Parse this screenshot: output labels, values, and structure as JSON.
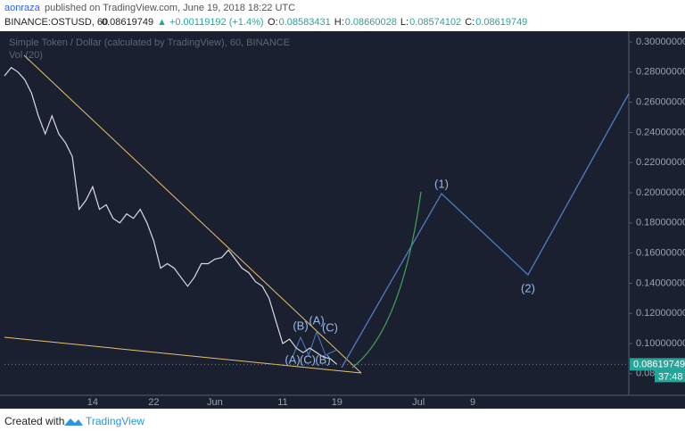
{
  "header": {
    "author": "aonraza",
    "published": "published on TradingView.com, June 19, 2018 18:22 UTC",
    "symbol": "BINANCE:OSTUSD, 60",
    "price": "0.08619749",
    "change": "▲ +0.00119192 (+1.4%)",
    "ohlc": [
      {
        "label": "O:",
        "value": "0.08583431"
      },
      {
        "label": "H:",
        "value": "0.08660028"
      },
      {
        "label": "L:",
        "value": "0.08574102"
      },
      {
        "label": "C:",
        "value": "0.08619749"
      }
    ]
  },
  "chart_data": {
    "type": "line",
    "title": "Simple Token / Dollar (calculated by TradingView), 60, BINANCE",
    "subtitle": "Vol (20)",
    "categories": [
      null,
      null,
      null,
      null,
      null,
      null,
      null,
      null,
      null,
      null,
      null,
      null,
      null,
      "14",
      null,
      null,
      null,
      null,
      null,
      null,
      null,
      null,
      "22",
      null,
      null,
      null,
      null,
      null,
      null,
      null,
      null,
      "Jun",
      null,
      null,
      null,
      null,
      null,
      null,
      null,
      null,
      null,
      "11",
      null,
      null,
      null,
      null,
      null,
      null,
      null,
      "19",
      null,
      null,
      null,
      null,
      null,
      null,
      null,
      null,
      null,
      null,
      null,
      "Jul",
      null,
      null,
      null,
      null,
      null,
      null,
      null,
      "9",
      null,
      null,
      null,
      null,
      null,
      null,
      null,
      null,
      null,
      null,
      null,
      null,
      null,
      null,
      null,
      null,
      null,
      null,
      null,
      null,
      null,
      null,
      null
    ],
    "series": [
      {
        "name": "OSTUSD",
        "color": "#d8dbe3",
        "values": [
          0.2775,
          0.283,
          0.28,
          0.275,
          0.266,
          0.251,
          0.239,
          0.251,
          0.239,
          0.233,
          0.224,
          0.189,
          0.195,
          0.204,
          0.189,
          0.192,
          0.183,
          0.18,
          0.186,
          0.183,
          0.189,
          0.18,
          0.168,
          0.15,
          0.153,
          0.15,
          0.144,
          0.138,
          0.144,
          0.153,
          0.153,
          0.156,
          0.157,
          0.162,
          0.156,
          0.15,
          0.147,
          0.141,
          0.138,
          0.13,
          0.115,
          0.1,
          0.103,
          0.097,
          0.094,
          0.097,
          0.094,
          0.091,
          0.09,
          0.08619749,
          null,
          null,
          null,
          null,
          null,
          null,
          null,
          null,
          null,
          null,
          null,
          null,
          null,
          null,
          null,
          null,
          null,
          null,
          null,
          null,
          null,
          null,
          null,
          null,
          null,
          null,
          null,
          null,
          null,
          null,
          null,
          null,
          null,
          null,
          null,
          null,
          null,
          null,
          null,
          null,
          null,
          null,
          null
        ]
      }
    ],
    "ylim": [
      0.0657,
      0.3071
    ],
    "yticks": [
      {
        "value": 0.08,
        "label": "0.08000000"
      },
      {
        "value": 0.1,
        "label": "0.10000000"
      },
      {
        "value": 0.12,
        "label": "0.12000000"
      },
      {
        "value": 0.14,
        "label": "0.14000000"
      },
      {
        "value": 0.16,
        "label": "0.16000000"
      },
      {
        "value": 0.18,
        "label": "0.18000000"
      },
      {
        "value": 0.2,
        "label": "0.20000000"
      },
      {
        "value": 0.22,
        "label": "0.22000000"
      },
      {
        "value": 0.24,
        "label": "0.24000000"
      },
      {
        "value": 0.26,
        "label": "0.26000000"
      },
      {
        "value": 0.28,
        "label": "0.28000000"
      },
      {
        "value": 0.3,
        "label": "0.30000000"
      }
    ],
    "last_price": {
      "value": 0.08619749,
      "label": "0.08619749"
    },
    "countdown": "37:48",
    "grid": false,
    "annotations": [
      "(1)",
      "(2)",
      "(A)",
      "(B)",
      "(C)",
      "(A)",
      "(C)",
      "(B)"
    ]
  },
  "footer": {
    "created": "Created with",
    "brand": "TradingView"
  }
}
